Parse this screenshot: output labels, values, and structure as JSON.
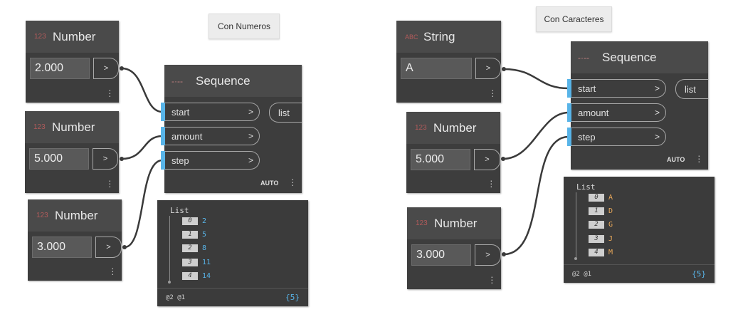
{
  "left": {
    "label": "Con Numeros",
    "number_nodes": [
      {
        "type_tag": "123",
        "title": "Number",
        "value": "2.000",
        "out": ">"
      },
      {
        "type_tag": "123",
        "title": "Number",
        "value": "5.000",
        "out": ">"
      },
      {
        "type_tag": "123",
        "title": "Number",
        "value": "3.000",
        "out": ">"
      }
    ],
    "sequence": {
      "type_tag": "-·--",
      "title": "Sequence",
      "inputs": [
        {
          "name": "start",
          "arrow": ">"
        },
        {
          "name": "amount",
          "arrow": ">"
        },
        {
          "name": "step",
          "arrow": ">"
        }
      ],
      "output": "list",
      "lacing": "AUTO"
    },
    "preview": {
      "title": "List",
      "items": [
        {
          "index": "0",
          "value": "2"
        },
        {
          "index": "1",
          "value": "5"
        },
        {
          "index": "2",
          "value": "8"
        },
        {
          "index": "3",
          "value": "11"
        },
        {
          "index": "4",
          "value": "14"
        }
      ],
      "levels": "@2 @1",
      "count": "{5}"
    }
  },
  "right": {
    "label": "Con Caracteres",
    "string_node": {
      "type_tag": "ABC",
      "title": "String",
      "value": "A",
      "out": ">"
    },
    "number_nodes": [
      {
        "type_tag": "123",
        "title": "Number",
        "value": "5.000",
        "out": ">"
      },
      {
        "type_tag": "123",
        "title": "Number",
        "value": "3.000",
        "out": ">"
      }
    ],
    "sequence": {
      "type_tag": "-·--",
      "title": "Sequence",
      "inputs": [
        {
          "name": "start",
          "arrow": ">"
        },
        {
          "name": "amount",
          "arrow": ">"
        },
        {
          "name": "step",
          "arrow": ">"
        }
      ],
      "output": "list",
      "lacing": "AUTO"
    },
    "preview": {
      "title": "List",
      "items": [
        {
          "index": "0",
          "value": "A"
        },
        {
          "index": "1",
          "value": "D"
        },
        {
          "index": "2",
          "value": "G"
        },
        {
          "index": "3",
          "value": "J"
        },
        {
          "index": "4",
          "value": "M"
        }
      ],
      "levels": "@2 @1",
      "count": "{5}"
    }
  },
  "colors": {
    "port_blue": "#58b4e8",
    "wire": "#3a3a3a",
    "number_value": "#58b4e8",
    "string_value": "#e8a85a",
    "type_tag": "#b05a5a"
  }
}
